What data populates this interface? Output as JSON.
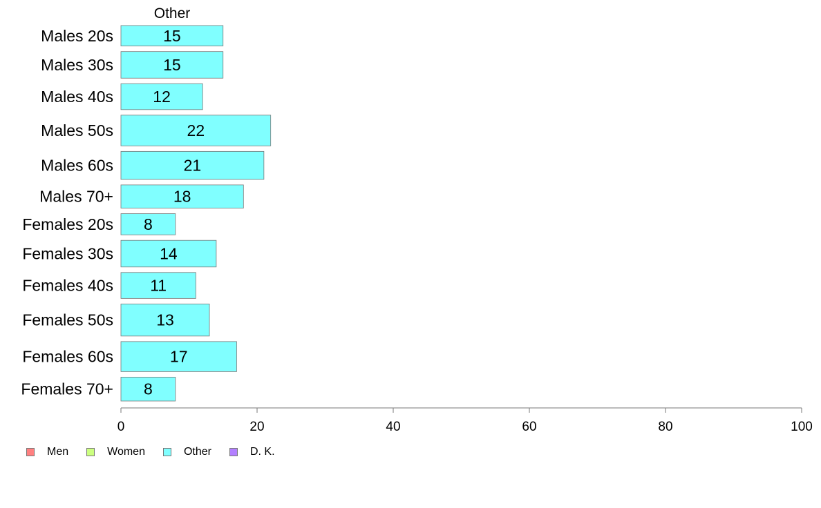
{
  "chart_data": {
    "type": "bar",
    "orientation": "horizontal",
    "title": "Other",
    "categories": [
      "Males 20s",
      "Males 30s",
      "Males 40s",
      "Males 50s",
      "Males 60s",
      "Males 70+",
      "Females 20s",
      "Females 30s",
      "Females 40s",
      "Females 50s",
      "Females 60s",
      "Females 70+"
    ],
    "series": [
      {
        "name": "Other",
        "color": "#80FFFF",
        "values": [
          15,
          15,
          12,
          22,
          21,
          18,
          8,
          14,
          11,
          13,
          17,
          8
        ]
      }
    ],
    "bar_widths_relative": [
      30,
      39,
      38,
      45,
      41,
      34,
      31,
      39,
      38,
      47,
      44,
      35
    ],
    "xlim": [
      0,
      100
    ],
    "xticks": [
      0,
      20,
      40,
      60,
      80,
      100
    ],
    "grid": false,
    "legend": {
      "placement": "bottom-left",
      "items": [
        {
          "label": "Men",
          "color": "#FF8080"
        },
        {
          "label": "Women",
          "color": "#CCFF80"
        },
        {
          "label": "Other",
          "color": "#80FFFF"
        },
        {
          "label": "D. K.",
          "color": "#B380FF"
        }
      ]
    }
  }
}
